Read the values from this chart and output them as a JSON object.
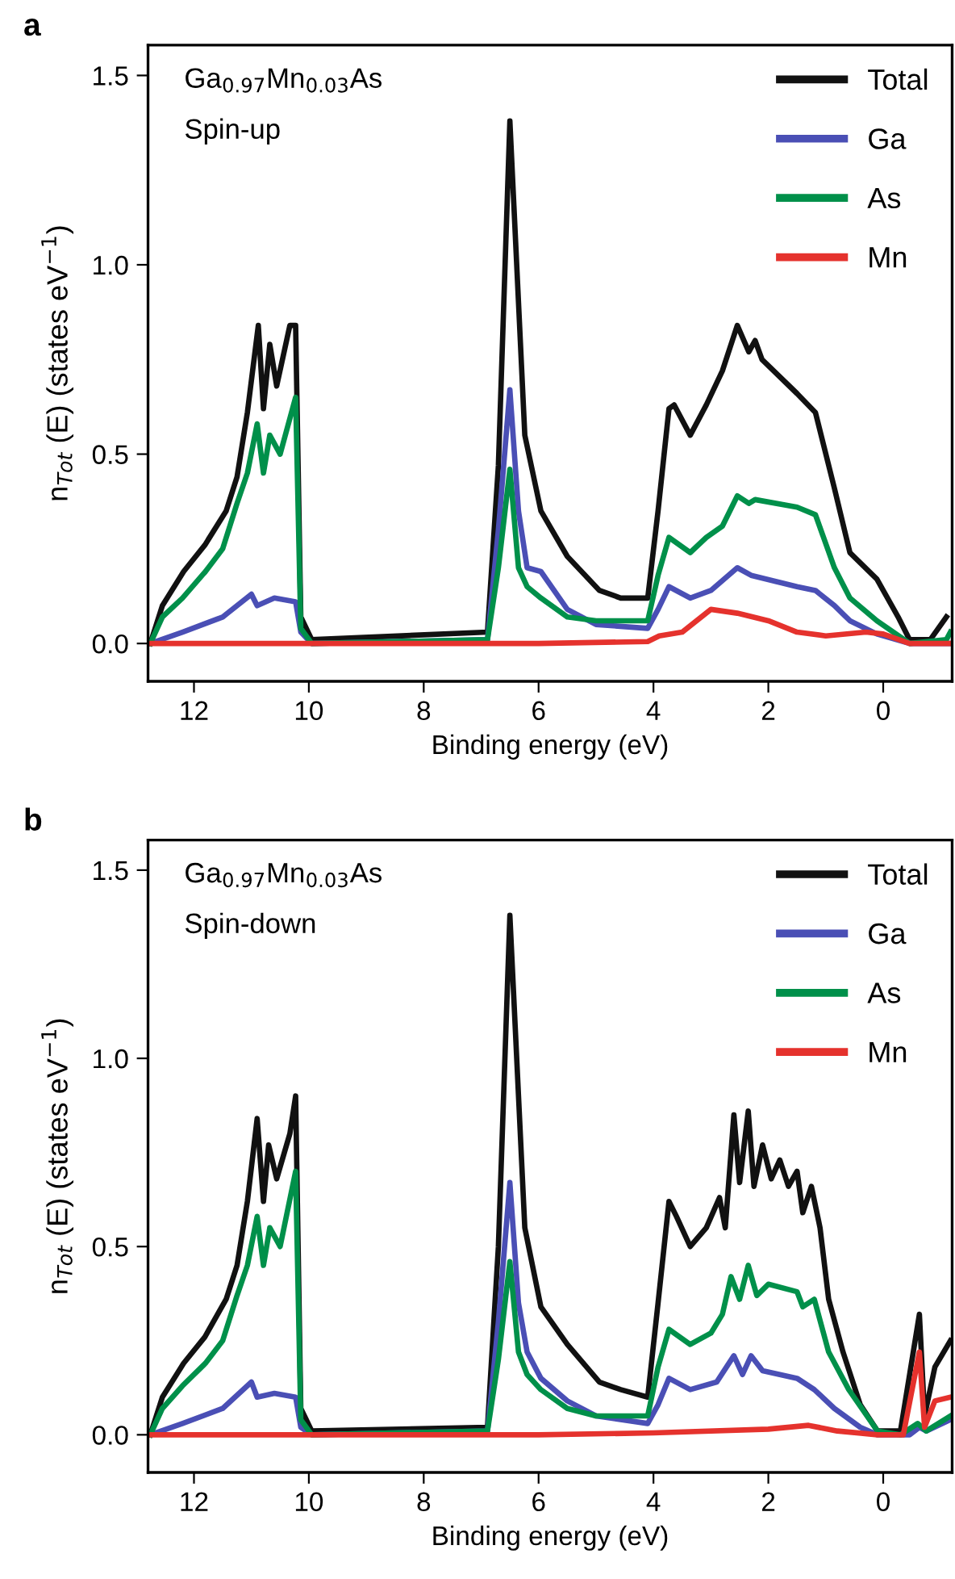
{
  "chart_data": [
    {
      "type": "line",
      "title": "a",
      "xlabel": "Binding energy (eV)",
      "ylabel": "n$_{Tot}$ (E) (states eV$^{−1}$)",
      "annotations": [
        "Ga$_{0.97}$Mn$_{0.03}$As",
        "Spin-up"
      ],
      "xlim": [
        12.8,
        -1.2
      ],
      "ylim": [
        -0.1,
        1.58
      ],
      "xticks": [
        12,
        10,
        8,
        6,
        4,
        2,
        0
      ],
      "yticks": [
        {
          "value": 0,
          "label": "0.0"
        },
        {
          "value": 0.5,
          "label": "0.5"
        },
        {
          "value": 1,
          "label": "1.0"
        },
        {
          "value": 1.5,
          "label": "1.5"
        }
      ],
      "grid": false,
      "legend": "top right",
      "marker": "none",
      "line_style": "solid",
      "series": [
        {
          "name": "Total",
          "color": "#111111",
          "x": [
            12.76,
            12.55,
            12.18,
            11.81,
            11.44,
            11.25,
            11.07,
            10.88,
            10.79,
            10.68,
            10.56,
            10.33,
            10.23,
            10.14,
            9.95,
            6.89,
            6.7,
            6.5,
            6.24,
            5.96,
            5.5,
            4.94,
            4.57,
            4.1,
            3.92,
            3.73,
            3.64,
            3.36,
            3.08,
            2.8,
            2.54,
            2.34,
            2.23,
            2.11,
            1.5,
            1.18,
            0.85,
            0.58,
            0.11,
            -0.26,
            -0.46,
            -0.82,
            -1.1
          ],
          "values": [
            0,
            0.1,
            0.19,
            0.26,
            0.35,
            0.44,
            0.61,
            0.84,
            0.62,
            0.79,
            0.68,
            0.84,
            0.84,
            0.07,
            0.01,
            0.03,
            0.47,
            1.38,
            0.55,
            0.35,
            0.23,
            0.14,
            0.12,
            0.12,
            0.35,
            0.62,
            0.63,
            0.55,
            0.63,
            0.72,
            0.84,
            0.77,
            0.8,
            0.75,
            0.66,
            0.61,
            0.41,
            0.24,
            0.17,
            0.07,
            0.01,
            0.01,
            0.07
          ]
        },
        {
          "name": "Ga",
          "color": "#4a4fb5",
          "x": [
            12.76,
            12.2,
            11.5,
            11.0,
            10.9,
            10.6,
            10.23,
            10.14,
            9.95,
            6.89,
            6.7,
            6.5,
            6.35,
            6.2,
            5.96,
            5.5,
            5.0,
            4.1,
            3.92,
            3.73,
            3.36,
            3.0,
            2.54,
            2.3,
            1.5,
            1.18,
            0.85,
            0.58,
            0.11,
            -0.46,
            -1.17
          ],
          "values": [
            0,
            0.03,
            0.07,
            0.13,
            0.1,
            0.12,
            0.11,
            0.03,
            0,
            0.01,
            0.3,
            0.67,
            0.35,
            0.2,
            0.19,
            0.09,
            0.05,
            0.04,
            0.09,
            0.15,
            0.12,
            0.14,
            0.2,
            0.18,
            0.15,
            0.14,
            0.1,
            0.06,
            0.025,
            0,
            0
          ]
        },
        {
          "name": "As",
          "color": "#00904a",
          "x": [
            12.76,
            12.55,
            12.2,
            11.8,
            11.5,
            11.25,
            11.07,
            10.9,
            10.79,
            10.68,
            10.5,
            10.23,
            10.14,
            9.95,
            6.89,
            6.7,
            6.5,
            6.35,
            6.2,
            5.96,
            5.5,
            5.0,
            4.1,
            3.92,
            3.73,
            3.36,
            3.08,
            2.8,
            2.54,
            2.34,
            2.23,
            1.5,
            1.18,
            0.85,
            0.58,
            0.11,
            -0.46,
            -1.1,
            -1.17
          ],
          "values": [
            0,
            0.07,
            0.12,
            0.19,
            0.25,
            0.37,
            0.45,
            0.58,
            0.45,
            0.55,
            0.5,
            0.65,
            0.04,
            0,
            0.01,
            0.2,
            0.46,
            0.2,
            0.15,
            0.12,
            0.07,
            0.06,
            0.06,
            0.18,
            0.28,
            0.24,
            0.28,
            0.31,
            0.39,
            0.37,
            0.38,
            0.36,
            0.34,
            0.2,
            0.12,
            0.06,
            0,
            0.01,
            0.03
          ]
        },
        {
          "name": "Mn",
          "color": "#e5322d",
          "x": [
            12.76,
            10,
            6,
            4.1,
            3.9,
            3.5,
            3.0,
            2.54,
            2.0,
            1.5,
            1.0,
            0.3,
            0,
            -0.46,
            -1.17
          ],
          "values": [
            0,
            0,
            0,
            0.005,
            0.02,
            0.03,
            0.09,
            0.08,
            0.06,
            0.03,
            0.02,
            0.03,
            0.025,
            0,
            0
          ]
        }
      ]
    },
    {
      "type": "line",
      "title": "b",
      "xlabel": "Binding energy (eV)",
      "ylabel": "n$_{Tot}$ (E) (states eV$^{−1}$)",
      "annotations": [
        "Ga$_{0.97}$Mn$_{0.03}$As",
        "Spin-down"
      ],
      "xlim": [
        12.8,
        -1.2
      ],
      "ylim": [
        -0.1,
        1.58
      ],
      "xticks": [
        12,
        10,
        8,
        6,
        4,
        2,
        0
      ],
      "yticks": [
        {
          "value": 0,
          "label": "0.0"
        },
        {
          "value": 0.5,
          "label": "0.5"
        },
        {
          "value": 1,
          "label": "1.0"
        },
        {
          "value": 1.5,
          "label": "1.5"
        }
      ],
      "grid": false,
      "legend": "top right",
      "marker": "none",
      "line_style": "solid",
      "series": [
        {
          "name": "Total",
          "color": "#111111",
          "x": [
            12.76,
            12.55,
            12.18,
            11.81,
            11.44,
            11.25,
            11.07,
            10.9,
            10.79,
            10.7,
            10.56,
            10.33,
            10.23,
            10.14,
            9.95,
            6.89,
            6.7,
            6.5,
            6.24,
            5.96,
            5.5,
            4.94,
            4.57,
            4.1,
            3.92,
            3.73,
            3.6,
            3.36,
            3.08,
            2.85,
            2.75,
            2.6,
            2.5,
            2.35,
            2.25,
            2.1,
            1.95,
            1.8,
            1.65,
            1.5,
            1.4,
            1.25,
            1.1,
            0.95,
            0.7,
            0.4,
            0.1,
            -0.3,
            -0.63,
            -0.72,
            -0.9,
            -1.17
          ],
          "values": [
            0,
            0.1,
            0.19,
            0.26,
            0.36,
            0.45,
            0.62,
            0.84,
            0.62,
            0.77,
            0.68,
            0.8,
            0.9,
            0.07,
            0.01,
            0.02,
            0.5,
            1.38,
            0.55,
            0.34,
            0.24,
            0.14,
            0.12,
            0.1,
            0.35,
            0.62,
            0.58,
            0.5,
            0.55,
            0.63,
            0.55,
            0.85,
            0.67,
            0.86,
            0.66,
            0.77,
            0.68,
            0.73,
            0.66,
            0.7,
            0.59,
            0.66,
            0.55,
            0.36,
            0.22,
            0.08,
            0.01,
            0.01,
            0.32,
            0.05,
            0.18,
            0.25
          ]
        },
        {
          "name": "Ga",
          "color": "#4a4fb5",
          "x": [
            12.76,
            12.2,
            11.5,
            11.0,
            10.9,
            10.6,
            10.23,
            10.14,
            9.95,
            6.89,
            6.7,
            6.5,
            6.35,
            6.2,
            5.96,
            5.5,
            5.0,
            4.1,
            3.92,
            3.73,
            3.36,
            2.9,
            2.6,
            2.45,
            2.3,
            2.1,
            1.5,
            1.2,
            0.85,
            0.4,
            0.1,
            -0.46,
            -0.63,
            -0.75,
            -1.17
          ],
          "values": [
            0,
            0.03,
            0.07,
            0.14,
            0.1,
            0.11,
            0.1,
            0.02,
            0,
            0.01,
            0.3,
            0.67,
            0.35,
            0.22,
            0.15,
            0.09,
            0.05,
            0.03,
            0.08,
            0.15,
            0.12,
            0.14,
            0.21,
            0.16,
            0.21,
            0.17,
            0.15,
            0.12,
            0.07,
            0.02,
            0,
            0,
            0.02,
            0.01,
            0.04
          ]
        },
        {
          "name": "As",
          "color": "#00904a",
          "x": [
            12.76,
            12.55,
            12.2,
            11.8,
            11.5,
            11.25,
            11.07,
            10.9,
            10.79,
            10.68,
            10.5,
            10.23,
            10.14,
            9.95,
            6.89,
            6.7,
            6.5,
            6.35,
            6.2,
            5.96,
            5.5,
            5.0,
            4.1,
            3.92,
            3.73,
            3.36,
            3.0,
            2.8,
            2.65,
            2.5,
            2.35,
            2.2,
            2.0,
            1.5,
            1.4,
            1.2,
            0.95,
            0.6,
            0.1,
            -0.3,
            -0.6,
            -0.75,
            -1.17
          ],
          "values": [
            0,
            0.07,
            0.13,
            0.19,
            0.25,
            0.37,
            0.45,
            0.58,
            0.45,
            0.55,
            0.5,
            0.7,
            0.04,
            0,
            0.01,
            0.2,
            0.46,
            0.22,
            0.16,
            0.12,
            0.07,
            0.05,
            0.05,
            0.18,
            0.28,
            0.24,
            0.27,
            0.32,
            0.42,
            0.36,
            0.45,
            0.37,
            0.4,
            0.38,
            0.34,
            0.36,
            0.22,
            0.12,
            0.01,
            0,
            0.03,
            0.01,
            0.05
          ]
        },
        {
          "name": "Mn",
          "color": "#e5322d",
          "x": [
            12.76,
            10,
            6,
            4,
            2,
            1.3,
            0.8,
            0.1,
            -0.35,
            -0.63,
            -0.72,
            -0.9,
            -1.17
          ],
          "values": [
            0,
            0,
            0,
            0.005,
            0.015,
            0.025,
            0.01,
            0,
            0,
            0.22,
            0.02,
            0.09,
            0.1
          ]
        }
      ]
    }
  ]
}
